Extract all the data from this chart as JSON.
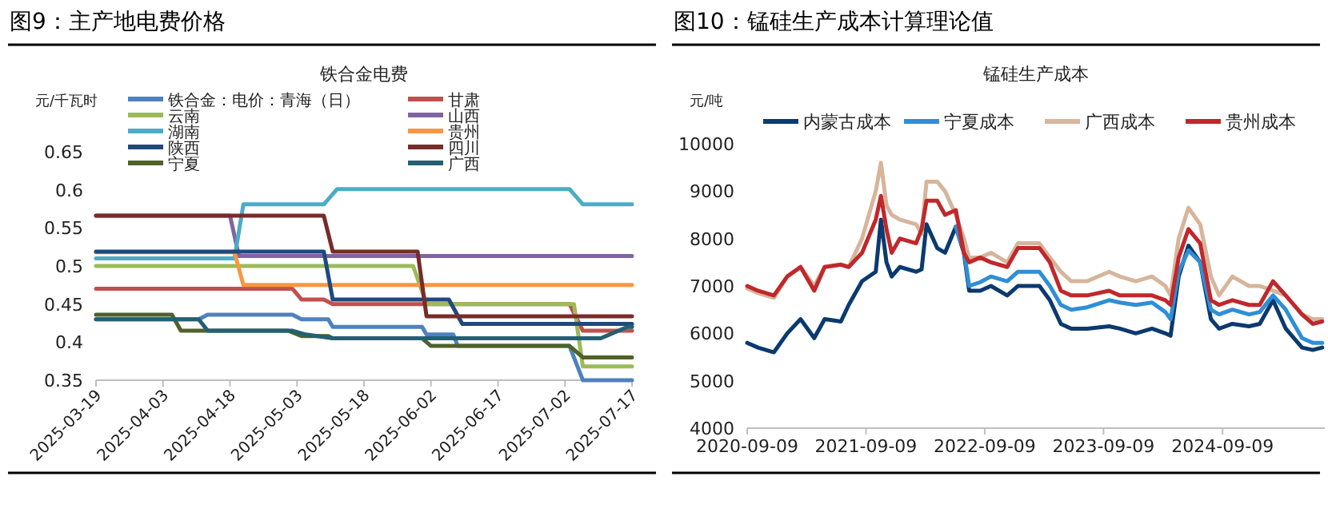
{
  "chart_data": [
    {
      "type": "line",
      "title": "图9：主产地电费价格",
      "subtitle": "铁合金电费",
      "ylabel": "元/千瓦时",
      "legend": "top",
      "grid": false,
      "line_style": "solid",
      "xlim": [
        "2025-03-19",
        "2025-07-17"
      ],
      "xticks": [
        "2025-03-19",
        "2025-04-03",
        "2025-04-18",
        "2025-05-03",
        "2025-05-18",
        "2025-06-02",
        "2025-06-17",
        "2025-07-02",
        "2025-07-17"
      ],
      "ylim": [
        0.35,
        0.65
      ],
      "yticks": [
        0.35,
        0.4,
        0.45,
        0.5,
        0.55,
        0.6,
        0.65
      ],
      "series": [
        {
          "name": "铁合金：电价：青海（日）",
          "color": "#4f81bd",
          "x": [
            "2025-03-19",
            "2025-04-11",
            "2025-04-13",
            "2025-05-02",
            "2025-05-04",
            "2025-05-10",
            "2025-05-11",
            "2025-05-31",
            "2025-06-01",
            "2025-06-07",
            "2025-06-08",
            "2025-07-03",
            "2025-07-06",
            "2025-07-17"
          ],
          "values": [
            0.43,
            0.43,
            0.436,
            0.436,
            0.43,
            0.43,
            0.42,
            0.42,
            0.41,
            0.41,
            0.395,
            0.395,
            0.35,
            0.35
          ]
        },
        {
          "name": "甘肃",
          "color": "#c0504d",
          "x": [
            "2025-03-19",
            "2025-05-02",
            "2025-05-04",
            "2025-05-09",
            "2025-05-11",
            "2025-07-03",
            "2025-07-06",
            "2025-07-17"
          ],
          "values": [
            0.47,
            0.47,
            0.456,
            0.456,
            0.45,
            0.45,
            0.415,
            0.415
          ]
        },
        {
          "name": "云南",
          "color": "#9bbb59",
          "x": [
            "2025-03-19",
            "2025-05-29",
            "2025-06-01",
            "2025-07-04",
            "2025-07-06",
            "2025-07-17"
          ],
          "values": [
            0.5,
            0.5,
            0.45,
            0.45,
            0.368,
            0.368
          ]
        },
        {
          "name": "山西",
          "color": "#8064a2",
          "x": [
            "2025-03-19",
            "2025-04-18",
            "2025-04-20",
            "2025-07-17"
          ],
          "values": [
            0.566,
            0.566,
            0.513,
            0.513
          ]
        },
        {
          "name": "湖南",
          "color": "#4bacc6",
          "x": [
            "2025-03-19",
            "2025-04-19",
            "2025-04-21",
            "2025-05-09",
            "2025-05-12",
            "2025-07-03",
            "2025-07-06",
            "2025-07-17"
          ],
          "values": [
            0.51,
            0.51,
            0.581,
            0.581,
            0.601,
            0.601,
            0.581,
            0.581
          ]
        },
        {
          "name": "贵州",
          "color": "#f79646",
          "x": [
            "2025-03-19",
            "2025-04-19",
            "2025-04-21",
            "2025-07-17"
          ],
          "values": [
            0.518,
            0.518,
            0.475,
            0.475
          ]
        },
        {
          "name": "陕西",
          "color": "#1f497d",
          "x": [
            "2025-03-19",
            "2025-05-09",
            "2025-05-11",
            "2025-06-06",
            "2025-06-09",
            "2025-07-17"
          ],
          "values": [
            0.519,
            0.519,
            0.456,
            0.456,
            0.424,
            0.424
          ]
        },
        {
          "name": "四川",
          "color": "#772c2a",
          "x": [
            "2025-03-19",
            "2025-05-09",
            "2025-05-11",
            "2025-05-30",
            "2025-06-01",
            "2025-07-17"
          ],
          "values": [
            0.566,
            0.566,
            0.519,
            0.519,
            0.434,
            0.434
          ]
        },
        {
          "name": "宁夏",
          "color": "#4f6228",
          "x": [
            "2025-03-19",
            "2025-04-05",
            "2025-04-07",
            "2025-05-01",
            "2025-05-04",
            "2025-05-10",
            "2025-05-11",
            "2025-05-31",
            "2025-06-02",
            "2025-07-03",
            "2025-07-06",
            "2025-07-17"
          ],
          "values": [
            0.436,
            0.436,
            0.415,
            0.415,
            0.408,
            0.408,
            0.405,
            0.405,
            0.395,
            0.395,
            0.38,
            0.38
          ]
        },
        {
          "name": "广西",
          "color": "#236072",
          "x": [
            "2025-03-19",
            "2025-04-11",
            "2025-04-13",
            "2025-05-02",
            "2025-05-05",
            "2025-05-11",
            "2025-07-10",
            "2025-07-16",
            "2025-07-17"
          ],
          "values": [
            0.43,
            0.43,
            0.415,
            0.415,
            0.41,
            0.405,
            0.405,
            0.42,
            0.42
          ]
        }
      ]
    },
    {
      "type": "line",
      "title": "图10：锰硅生产成本计算理论值",
      "subtitle": "锰硅生产成本",
      "ylabel": "元/吨",
      "legend": "top",
      "grid": false,
      "line_style": "solid",
      "xlim": [
        "2020-09-09",
        "2025-07-20"
      ],
      "xticks": [
        "2020-09-09",
        "2021-09-09",
        "2022-09-09",
        "2023-09-09",
        "2024-09-09"
      ],
      "ylim": [
        4000,
        10000
      ],
      "yticks": [
        4000,
        5000,
        6000,
        7000,
        8000,
        9000,
        10000
      ],
      "x": [
        "2020-09-09",
        "2020-10-12",
        "2020-11-30",
        "2021-01-10",
        "2021-02-20",
        "2021-04-03",
        "2021-05-05",
        "2021-06-24",
        "2021-07-18",
        "2021-08-28",
        "2021-10-09",
        "2021-10-25",
        "2021-11-11",
        "2021-11-27",
        "2021-12-22",
        "2022-02-10",
        "2022-02-27",
        "2022-03-14",
        "2022-04-16",
        "2022-05-10",
        "2022-06-12",
        "2022-07-07",
        "2022-07-23",
        "2022-08-26",
        "2022-09-28",
        "2022-11-17",
        "2022-12-20",
        "2023-02-24",
        "2023-03-28",
        "2023-05-01",
        "2023-06-02",
        "2023-07-21",
        "2023-09-26",
        "2023-10-29",
        "2023-12-17",
        "2024-02-05",
        "2024-03-17",
        "2024-04-02",
        "2024-04-27",
        "2024-05-27",
        "2024-07-02",
        "2024-08-04",
        "2024-08-29",
        "2024-10-09",
        "2024-11-29",
        "2025-01-01",
        "2025-02-11",
        "2025-03-22",
        "2025-05-11",
        "2025-06-13",
        "2025-07-12"
      ],
      "series": [
        {
          "name": "内蒙古成本",
          "color": "#0b3a6e",
          "values": [
            5800,
            5700,
            5600,
            6000,
            6300,
            5900,
            6300,
            6250,
            6600,
            7100,
            7300,
            8400,
            7500,
            7200,
            7400,
            7300,
            7350,
            8300,
            7800,
            7700,
            8250,
            7700,
            6900,
            6900,
            7000,
            6800,
            7000,
            7000,
            6700,
            6200,
            6100,
            6100,
            6150,
            6100,
            6000,
            6100,
            6000,
            5950,
            7200,
            7850,
            7500,
            6300,
            6100,
            6200,
            6150,
            6200,
            6700,
            6100,
            5700,
            5650,
            5700
          ]
        },
        {
          "name": "宁夏成本",
          "color": "#2e8fd6",
          "values": [
            null,
            null,
            null,
            null,
            null,
            null,
            null,
            null,
            null,
            null,
            null,
            null,
            null,
            null,
            null,
            null,
            null,
            null,
            null,
            null,
            8250,
            7750,
            7000,
            7080,
            7200,
            7100,
            7300,
            7300,
            7000,
            6600,
            6500,
            6550,
            6700,
            6650,
            6600,
            6650,
            6450,
            6300,
            7300,
            7750,
            7500,
            6500,
            6400,
            6500,
            6400,
            6450,
            6800,
            6500,
            5900,
            5800,
            5800
          ]
        },
        {
          "name": "广西成本",
          "color": "#d6b59b",
          "values": [
            6950,
            6850,
            6750,
            7200,
            7400,
            7000,
            7400,
            7450,
            7400,
            8000,
            9000,
            9600,
            8700,
            8500,
            8400,
            8300,
            8100,
            9200,
            9200,
            9000,
            8500,
            8000,
            7600,
            7600,
            7700,
            7500,
            7900,
            7900,
            7600,
            7300,
            7100,
            7100,
            7300,
            7200,
            7100,
            7200,
            7000,
            6800,
            8000,
            8650,
            8300,
            7200,
            6800,
            7200,
            7000,
            7000,
            6900,
            6800,
            6400,
            6300,
            6300
          ]
        },
        {
          "name": "贵州成本",
          "color": "#c0282c",
          "values": [
            7000,
            6900,
            6800,
            7200,
            7400,
            6900,
            7400,
            7450,
            7400,
            7700,
            8400,
            8900,
            8200,
            7700,
            8000,
            7900,
            8200,
            8800,
            8800,
            8500,
            8600,
            7700,
            7500,
            7600,
            7500,
            7400,
            7800,
            7800,
            7500,
            6900,
            6800,
            6800,
            6900,
            6800,
            6800,
            6800,
            6700,
            6600,
            7600,
            8200,
            7900,
            6700,
            6600,
            6700,
            6600,
            6600,
            7100,
            6800,
            6400,
            6200,
            6250
          ]
        }
      ]
    }
  ]
}
